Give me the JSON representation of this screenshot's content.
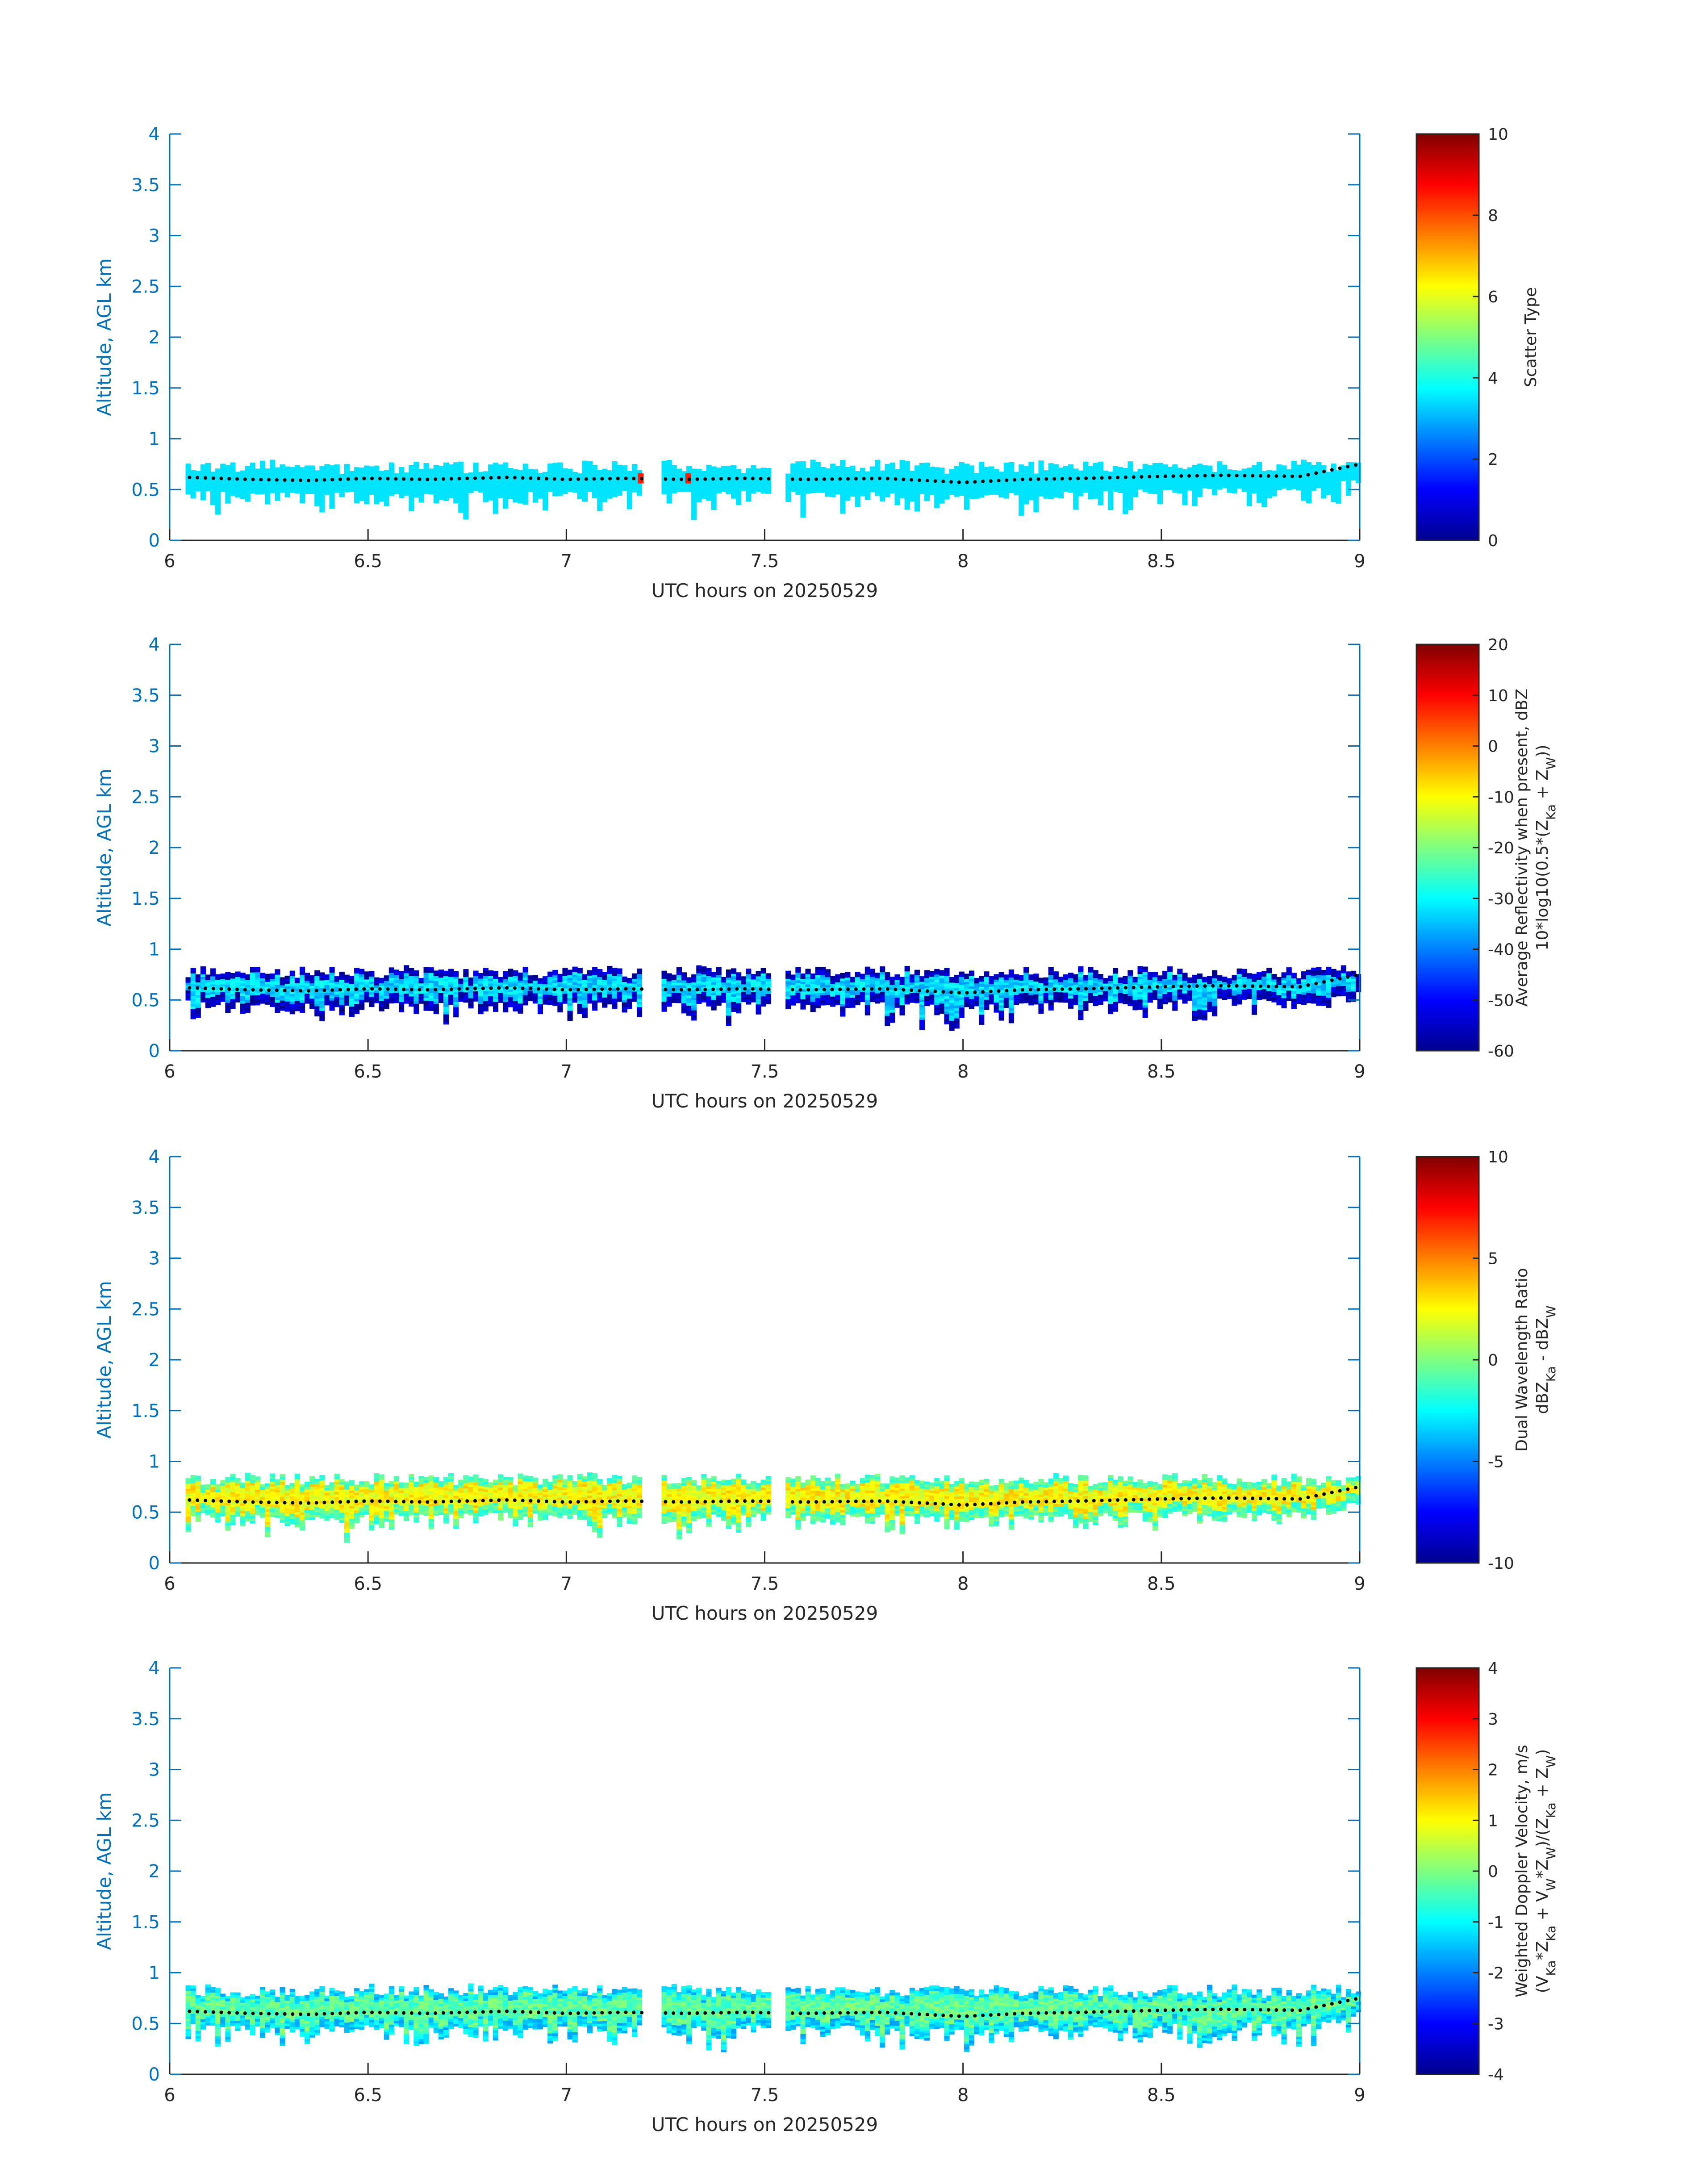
{
  "chart_data": [
    {
      "type": "heatmap",
      "xlabel": "UTC hours on 20250529",
      "ylabel": "Altitude, AGL km",
      "xlim": [
        6,
        9
      ],
      "ylim": [
        0,
        4
      ],
      "xticks": [
        "6",
        "6.5",
        "7",
        "7.5",
        "8",
        "8.5",
        "9"
      ],
      "yticks": [
        "0",
        "0.5",
        "1",
        "1.5",
        "2",
        "2.5",
        "3",
        "3.5",
        "4"
      ],
      "colorbar": {
        "label_lines": [
          "Scatter Type"
        ],
        "range": [
          0,
          10
        ],
        "ticks": [
          "0",
          "2",
          "4",
          "6",
          "8",
          "10"
        ]
      },
      "field": {
        "present_value": 3.5,
        "echo_base_km": 0.45,
        "echo_top_km": 0.7,
        "max_spread_km": 0.3,
        "data_gaps_utc_hours": [
          [
            7.19,
            7.24
          ],
          [
            7.51,
            7.55
          ]
        ],
        "outliers": [
          {
            "x": 7.18,
            "y": 0.6,
            "value": 8.5
          },
          {
            "x": 7.3,
            "y": 0.6,
            "value": 8.5
          }
        ]
      },
      "cloud_base_series": {
        "x": [
          6.05,
          6.2,
          6.35,
          6.5,
          6.65,
          6.85,
          7.0,
          7.15,
          7.3,
          7.45,
          7.6,
          7.8,
          8.0,
          8.15,
          8.3,
          8.5,
          8.65,
          8.85,
          9.0
        ],
        "y": [
          0.62,
          0.6,
          0.59,
          0.61,
          0.6,
          0.62,
          0.6,
          0.61,
          0.6,
          0.61,
          0.6,
          0.61,
          0.57,
          0.6,
          0.61,
          0.63,
          0.64,
          0.63,
          0.75
        ]
      }
    },
    {
      "type": "heatmap",
      "xlabel": "UTC hours on 20250529",
      "ylabel": "Altitude, AGL km",
      "xlim": [
        6,
        9
      ],
      "ylim": [
        0,
        4
      ],
      "xticks": [
        "6",
        "6.5",
        "7",
        "7.5",
        "8",
        "8.5",
        "9"
      ],
      "yticks": [
        "0",
        "0.5",
        "1",
        "1.5",
        "2",
        "2.5",
        "3",
        "3.5",
        "4"
      ],
      "colorbar": {
        "label_lines": [
          "Average Reflectivity when present, dBZ",
          "10*log10(0.5*(Z<sub>Ka</sub> + Z<sub>W</sub>))"
        ],
        "range": [
          -60,
          20
        ],
        "ticks": [
          "-60",
          "-50",
          "-40",
          "-30",
          "-20",
          "-10",
          "0",
          "10",
          "20"
        ]
      },
      "field": {
        "core_value_dbz": -33,
        "edge_value_dbz": -55,
        "echo_base_km": 0.45,
        "echo_top_km": 0.75,
        "max_spread_km": 0.3,
        "data_gaps_utc_hours": [
          [
            7.19,
            7.24
          ],
          [
            7.51,
            7.55
          ]
        ]
      },
      "cloud_base_series": {
        "x": [
          6.05,
          6.2,
          6.35,
          6.5,
          6.65,
          6.85,
          7.0,
          7.15,
          7.3,
          7.45,
          7.6,
          7.8,
          8.0,
          8.15,
          8.3,
          8.5,
          8.65,
          8.85,
          9.0
        ],
        "y": [
          0.62,
          0.6,
          0.59,
          0.61,
          0.6,
          0.62,
          0.6,
          0.61,
          0.6,
          0.61,
          0.6,
          0.61,
          0.57,
          0.6,
          0.61,
          0.63,
          0.64,
          0.63,
          0.75
        ]
      }
    },
    {
      "type": "heatmap",
      "xlabel": "UTC hours on 20250529",
      "ylabel": "Altitude, AGL km",
      "xlim": [
        6,
        9
      ],
      "ylim": [
        0,
        4
      ],
      "xticks": [
        "6",
        "6.5",
        "7",
        "7.5",
        "8",
        "8.5",
        "9"
      ],
      "yticks": [
        "0",
        "0.5",
        "1",
        "1.5",
        "2",
        "2.5",
        "3",
        "3.5",
        "4"
      ],
      "colorbar": {
        "label_lines": [
          "Dual Wavelength Ratio",
          "dBZ<sub>Ka</sub> - dBZ<sub>W</sub>"
        ],
        "range": [
          -10,
          10
        ],
        "ticks": [
          "-10",
          "-5",
          "0",
          "5",
          "10"
        ]
      },
      "field": {
        "core_value_db": 2.5,
        "edge_value_db": -1,
        "echo_base_km": 0.45,
        "echo_top_km": 0.8,
        "max_spread_km": 0.3,
        "data_gaps_utc_hours": [
          [
            7.19,
            7.24
          ],
          [
            7.51,
            7.55
          ]
        ]
      },
      "cloud_base_series": {
        "x": [
          6.05,
          6.2,
          6.35,
          6.5,
          6.65,
          6.85,
          7.0,
          7.15,
          7.3,
          7.45,
          7.6,
          7.8,
          8.0,
          8.15,
          8.3,
          8.5,
          8.65,
          8.85,
          9.0
        ],
        "y": [
          0.62,
          0.6,
          0.59,
          0.61,
          0.6,
          0.62,
          0.6,
          0.61,
          0.6,
          0.61,
          0.6,
          0.61,
          0.57,
          0.6,
          0.61,
          0.63,
          0.64,
          0.63,
          0.75
        ]
      }
    },
    {
      "type": "heatmap",
      "xlabel": "UTC hours on 20250529",
      "ylabel": "Altitude, AGL km",
      "xlim": [
        6,
        9
      ],
      "ylim": [
        0,
        4
      ],
      "xticks": [
        "6",
        "6.5",
        "7",
        "7.5",
        "8",
        "8.5",
        "9"
      ],
      "yticks": [
        "0",
        "0.5",
        "1",
        "1.5",
        "2",
        "2.5",
        "3",
        "3.5",
        "4"
      ],
      "colorbar": {
        "label_lines": [
          "Weighted Doppler Velocity, m/s",
          "(V<sub>Ka</sub>*Z<sub>Ka</sub> + V<sub>W</sub>*Z<sub>W</sub>)/(Z<sub>Ka</sub> + Z<sub>W</sub>)"
        ],
        "range": [
          -4,
          4
        ],
        "ticks": [
          "-4",
          "-3",
          "-2",
          "-1",
          "0",
          "1",
          "2",
          "3",
          "4"
        ]
      },
      "field": {
        "core_value_ms": -0.3,
        "edge_value_ms": -1.3,
        "echo_base_km": 0.45,
        "echo_top_km": 0.8,
        "max_spread_km": 0.3,
        "data_gaps_utc_hours": [
          [
            7.19,
            7.24
          ],
          [
            7.51,
            7.55
          ]
        ]
      },
      "cloud_base_series": {
        "x": [
          6.05,
          6.2,
          6.35,
          6.5,
          6.65,
          6.85,
          7.0,
          7.15,
          7.3,
          7.45,
          7.6,
          7.8,
          8.0,
          8.15,
          8.3,
          8.5,
          8.65,
          8.85,
          9.0
        ],
        "y": [
          0.62,
          0.6,
          0.59,
          0.61,
          0.6,
          0.62,
          0.6,
          0.61,
          0.6,
          0.61,
          0.6,
          0.61,
          0.57,
          0.6,
          0.61,
          0.63,
          0.64,
          0.63,
          0.75
        ]
      }
    }
  ]
}
